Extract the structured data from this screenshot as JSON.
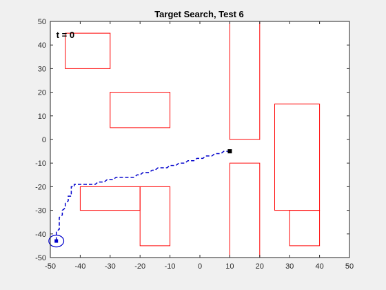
{
  "chart_data": {
    "type": "line",
    "title": "Target Search, Test 6",
    "xlabel": "",
    "ylabel": "",
    "xlim": [
      -50,
      50
    ],
    "ylim": [
      -50,
      50
    ],
    "xticks": [
      -50,
      -40,
      -30,
      -20,
      -10,
      0,
      10,
      20,
      30,
      40,
      50
    ],
    "yticks": [
      -50,
      -40,
      -30,
      -20,
      -10,
      0,
      10,
      20,
      30,
      40,
      50
    ],
    "grid": false,
    "annotation": {
      "text": "t = 0",
      "x": -48,
      "y": 44
    },
    "obstacles": [
      {
        "x0": -45,
        "y0": 30,
        "x1": -30,
        "y1": 45
      },
      {
        "x0": -30,
        "y0": 5,
        "x1": -10,
        "y1": 20
      },
      {
        "x0": 10,
        "y0": 0,
        "x1": 20,
        "y1": 50
      },
      {
        "x0": 10,
        "y0": -50,
        "x1": 20,
        "y1": -10
      },
      {
        "x0": 25,
        "y0": -30,
        "x1": 40,
        "y1": 15
      },
      {
        "x0": 30,
        "y0": -45,
        "x1": 40,
        "y1": -30
      },
      {
        "x0": -40,
        "y0": -30,
        "x1": -20,
        "y1": -20
      },
      {
        "x0": -20,
        "y0": -45,
        "x1": -10,
        "y1": -20
      }
    ],
    "obstacle_color": "#ff0000",
    "path_color": "#0000cc",
    "target_color": "#000000",
    "path": [
      [
        10,
        -5
      ],
      [
        8,
        -5
      ],
      [
        7,
        -6
      ],
      [
        5,
        -6
      ],
      [
        4,
        -7
      ],
      [
        2,
        -7
      ],
      [
        1,
        -8
      ],
      [
        -1,
        -8
      ],
      [
        -2,
        -9
      ],
      [
        -4,
        -9
      ],
      [
        -5,
        -10
      ],
      [
        -7,
        -10
      ],
      [
        -8,
        -11
      ],
      [
        -10,
        -11
      ],
      [
        -11,
        -12
      ],
      [
        -14,
        -12
      ],
      [
        -15,
        -13
      ],
      [
        -16,
        -13
      ],
      [
        -17,
        -14
      ],
      [
        -19,
        -14
      ],
      [
        -20,
        -15
      ],
      [
        -21,
        -15
      ],
      [
        -22,
        -16
      ],
      [
        -28,
        -16
      ],
      [
        -29,
        -17
      ],
      [
        -31,
        -17
      ],
      [
        -32,
        -18
      ],
      [
        -34,
        -18
      ],
      [
        -35,
        -19
      ],
      [
        -42,
        -19
      ],
      [
        -42,
        -20
      ],
      [
        -43,
        -20
      ],
      [
        -43,
        -24
      ],
      [
        -44,
        -24
      ],
      [
        -44,
        -26
      ],
      [
        -45,
        -27
      ],
      [
        -45,
        -29
      ],
      [
        -46,
        -30
      ],
      [
        -46,
        -32
      ],
      [
        -47,
        -33
      ],
      [
        -47,
        -36
      ],
      [
        -47,
        -38
      ],
      [
        -48,
        -39
      ],
      [
        -48,
        -43
      ]
    ],
    "target": {
      "x": 10,
      "y": -5
    },
    "start": {
      "x": -48,
      "y": -43
    },
    "start_circle_radius": 2.5
  }
}
